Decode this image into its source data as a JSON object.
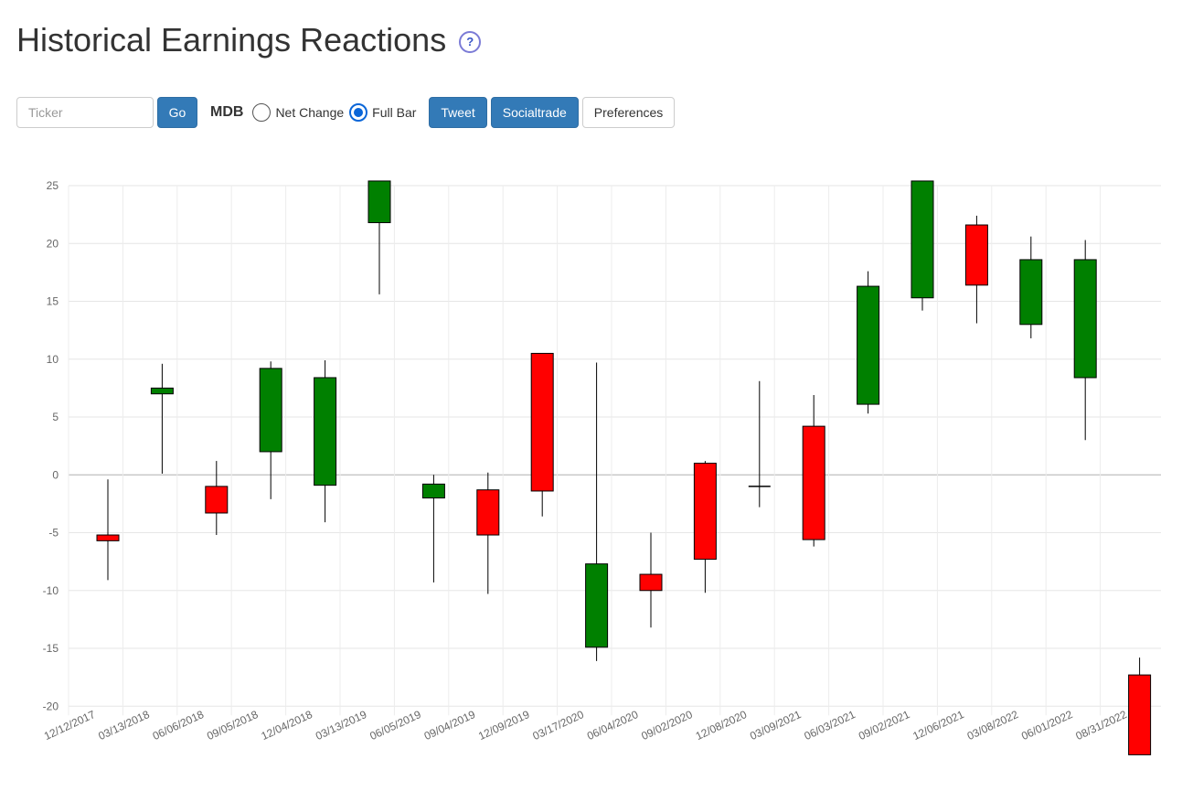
{
  "header": {
    "title": "Historical Earnings Reactions",
    "help_glyph": "?"
  },
  "toolbar": {
    "ticker_placeholder": "Ticker",
    "go_label": "Go",
    "symbol": "MDB",
    "radio_net_change": "Net Change",
    "radio_full_bar": "Full Bar",
    "selected_mode": "Full Bar",
    "tweet_label": "Tweet",
    "socialtrade_label": "Socialtrade",
    "preferences_label": "Preferences"
  },
  "colors": {
    "up": "#008000",
    "down": "#ff0000",
    "primary_button": "#337ab7",
    "help_icon": "#7b7bd6"
  },
  "chart_data": {
    "type": "candlestick",
    "ylim": [
      -20,
      25
    ],
    "y_ticks": [
      25,
      20,
      15,
      10,
      5,
      0,
      -5,
      -10,
      -15,
      -20
    ],
    "grid": true,
    "x_tick_labels": [
      "12/12/2017",
      "03/13/2018",
      "06/06/2018",
      "09/05/2018",
      "12/04/2018",
      "03/13/2019",
      "06/05/2019",
      "09/04/2019",
      "12/09/2019",
      "03/17/2020",
      "06/04/2020",
      "09/02/2020",
      "12/08/2020",
      "03/09/2021",
      "06/03/2021",
      "09/02/2021",
      "12/06/2021",
      "03/08/2022",
      "06/01/2022",
      "08/31/2022"
    ],
    "candles": [
      {
        "date": "12/12/2017",
        "open": -5.2,
        "close": -5.7,
        "high": -0.4,
        "low": -9.1
      },
      {
        "date": "03/13/2018",
        "open": 7.0,
        "close": 7.5,
        "high": 9.6,
        "low": 0.1
      },
      {
        "date": "06/06/2018",
        "open": -1.0,
        "close": -3.3,
        "high": 1.2,
        "low": -5.2
      },
      {
        "date": "09/05/2018",
        "open": 2.0,
        "close": 9.2,
        "high": 9.8,
        "low": -2.1
      },
      {
        "date": "12/04/2018",
        "open": -0.9,
        "close": 8.4,
        "high": 9.9,
        "low": -4.1
      },
      {
        "date": "03/13/2019",
        "open": 21.8,
        "close": 25.4,
        "high": 25.4,
        "low": 15.6
      },
      {
        "date": "06/05/2019",
        "open": -2.0,
        "close": -0.8,
        "high": 0.0,
        "low": -9.3
      },
      {
        "date": "09/04/2019",
        "open": -1.3,
        "close": -5.2,
        "high": 0.2,
        "low": -10.3
      },
      {
        "date": "12/09/2019",
        "open": 10.5,
        "close": -1.4,
        "high": 10.5,
        "low": -3.6
      },
      {
        "date": "03/17/2020",
        "open": -14.9,
        "close": -7.7,
        "high": 9.7,
        "low": -16.1
      },
      {
        "date": "06/04/2020",
        "open": -8.6,
        "close": -10.0,
        "high": -5.0,
        "low": -13.2
      },
      {
        "date": "09/02/2020",
        "open": 1.0,
        "close": -7.3,
        "high": 1.2,
        "low": -10.2
      },
      {
        "date": "12/08/2020",
        "open": -1.0,
        "close": -1.0,
        "high": 8.1,
        "low": -2.8
      },
      {
        "date": "03/09/2021",
        "open": 4.2,
        "close": -5.6,
        "high": 6.9,
        "low": -6.2
      },
      {
        "date": "06/03/2021",
        "open": 6.1,
        "close": 16.3,
        "high": 17.6,
        "low": 5.3
      },
      {
        "date": "09/02/2021",
        "open": 15.3,
        "close": 25.4,
        "high": 25.4,
        "low": 14.2
      },
      {
        "date": "12/06/2021",
        "open": 21.6,
        "close": 16.4,
        "high": 22.4,
        "low": 13.1
      },
      {
        "date": "03/08/2022",
        "open": 13.0,
        "close": 18.6,
        "high": 20.6,
        "low": 11.8
      },
      {
        "date": "06/01/2022",
        "open": 8.4,
        "close": 18.6,
        "high": 20.3,
        "low": 3.0
      },
      {
        "date": "08/31/2022",
        "open": -17.3,
        "close": -24.2,
        "high": -15.8,
        "low": -24.2
      }
    ]
  }
}
